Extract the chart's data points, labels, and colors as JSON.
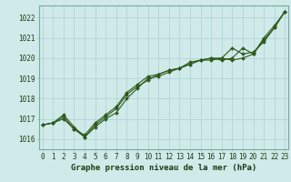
{
  "line1": [
    1016.7,
    1016.8,
    1017.2,
    1016.6,
    1016.1,
    1016.6,
    1017.0,
    1017.3,
    1018.0,
    1018.5,
    1019.0,
    1019.1,
    1019.3,
    1019.5,
    1019.7,
    1019.9,
    1019.9,
    1020.0,
    1019.9,
    1020.0,
    1020.2,
    1021.0,
    1021.6,
    1022.3
  ],
  "line2": [
    1016.7,
    1016.8,
    1017.1,
    1016.5,
    1016.2,
    1016.8,
    1017.2,
    1017.6,
    1018.3,
    1018.7,
    1019.1,
    1019.2,
    1019.4,
    1019.5,
    1019.8,
    1019.9,
    1020.0,
    1020.0,
    1020.5,
    1020.2,
    1020.3,
    1020.8,
    1021.5,
    1022.3
  ],
  "line3": [
    1016.7,
    1016.8,
    1017.0,
    1016.5,
    1016.1,
    1016.7,
    1017.1,
    1017.5,
    1018.2,
    1018.6,
    1018.9,
    1019.2,
    1019.4,
    1019.5,
    1019.7,
    1019.9,
    1020.0,
    1019.9,
    1020.0,
    1020.5,
    1020.2,
    1020.9,
    1021.5,
    1022.3
  ],
  "x": [
    0,
    1,
    2,
    3,
    4,
    5,
    6,
    7,
    8,
    9,
    10,
    11,
    12,
    13,
    14,
    15,
    16,
    17,
    18,
    19,
    20,
    21,
    22,
    23
  ],
  "ylim": [
    1015.5,
    1022.6
  ],
  "yticks": [
    1016,
    1017,
    1018,
    1019,
    1020,
    1021,
    1022
  ],
  "xticks": [
    0,
    1,
    2,
    3,
    4,
    5,
    6,
    7,
    8,
    9,
    10,
    11,
    12,
    13,
    14,
    15,
    16,
    17,
    18,
    19,
    20,
    21,
    22,
    23
  ],
  "xlabel": "Graphe pression niveau de la mer (hPa)",
  "line_color": "#2d5a1b",
  "bg_color": "#d0eaea",
  "grid_color": "#b0d4d4",
  "marker": "D",
  "marker_size": 2.0,
  "linewidth": 0.8,
  "tick_fontsize": 5.5,
  "xlabel_fontsize": 6.5,
  "label_color": "#1a3a10"
}
